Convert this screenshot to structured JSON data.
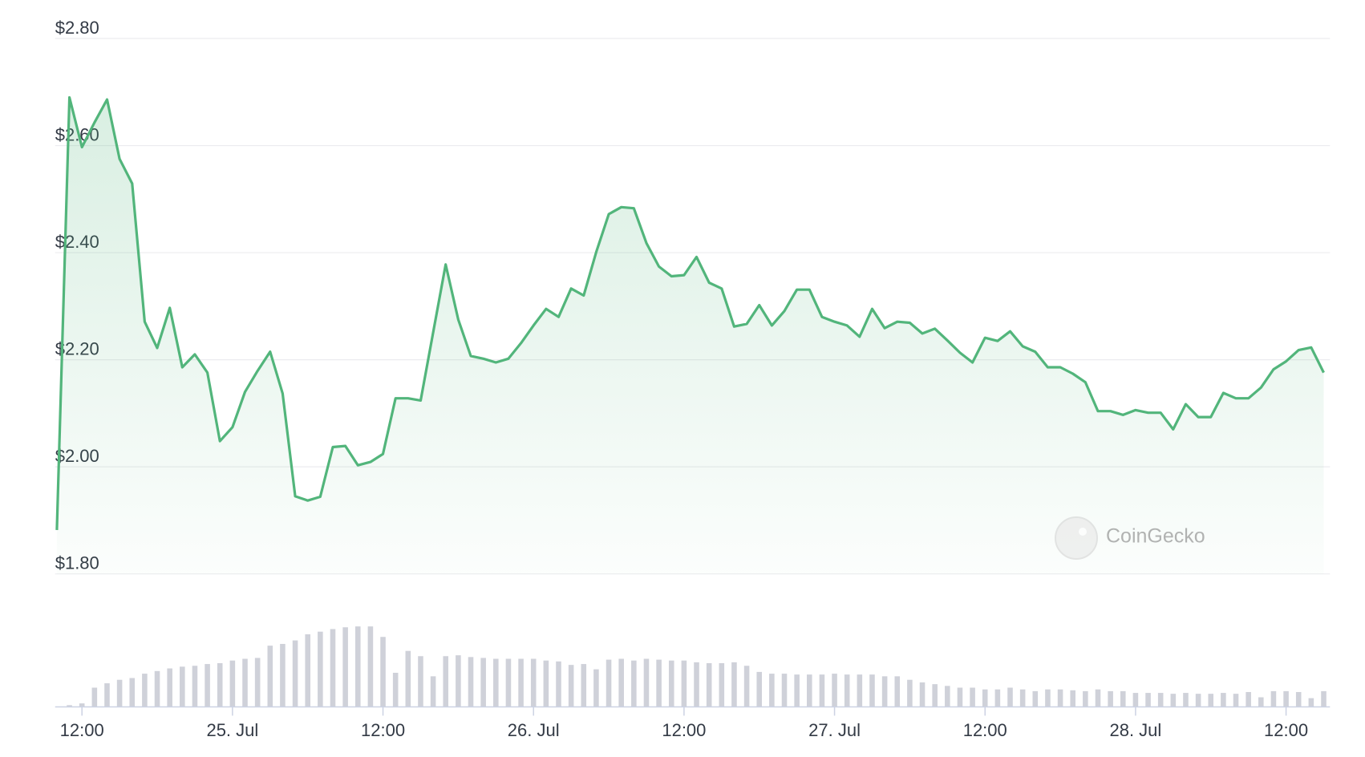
{
  "chart_data": {
    "type": "line",
    "watermark": "CoinGecko",
    "ylim": [
      1.8,
      2.8
    ],
    "yticks": [
      {
        "value": 1.8,
        "label": "$1.80"
      },
      {
        "value": 2.0,
        "label": "$2.00"
      },
      {
        "value": 2.2,
        "label": "$2.20"
      },
      {
        "value": 2.4,
        "label": "$2.40"
      },
      {
        "value": 2.6,
        "label": "$2.60"
      },
      {
        "value": 2.8,
        "label": "$2.80"
      }
    ],
    "grid": true,
    "y2lim": [
      0,
      100
    ],
    "categories": [
      null,
      null,
      "12:00",
      null,
      null,
      null,
      null,
      null,
      null,
      null,
      null,
      null,
      null,
      null,
      "25. Jul",
      null,
      null,
      null,
      null,
      null,
      null,
      null,
      null,
      null,
      null,
      null,
      "12:00",
      null,
      null,
      null,
      null,
      null,
      null,
      null,
      null,
      null,
      null,
      null,
      "26. Jul",
      null,
      null,
      null,
      null,
      null,
      null,
      null,
      null,
      null,
      null,
      null,
      "12:00",
      null,
      null,
      null,
      null,
      null,
      null,
      null,
      null,
      null,
      null,
      null,
      "27. Jul",
      null,
      null,
      null,
      null,
      null,
      null,
      null,
      null,
      null,
      null,
      null,
      "12:00",
      null,
      null,
      null,
      null,
      null,
      null,
      null,
      null,
      null,
      null,
      null,
      "28. Jul",
      null,
      null,
      null,
      null,
      null,
      null,
      null,
      null,
      null,
      null,
      null,
      "12:00",
      null,
      null,
      null
    ],
    "series": [
      {
        "color": "#52b57b",
        "values": [
          1.882,
          2.69,
          2.597,
          2.643,
          2.686,
          2.575,
          2.529,
          2.271,
          2.222,
          2.297,
          2.186,
          2.21,
          2.176,
          2.048,
          2.074,
          2.14,
          2.179,
          2.215,
          2.137,
          1.945,
          1.937,
          1.944,
          2.037,
          2.039,
          2.003,
          2.009,
          2.024,
          2.128,
          2.128,
          2.124,
          2.251,
          2.378,
          2.275,
          2.207,
          2.202,
          2.195,
          2.202,
          2.231,
          2.264,
          2.295,
          2.28,
          2.333,
          2.32,
          2.401,
          2.472,
          2.485,
          2.483,
          2.418,
          2.374,
          2.356,
          2.358,
          2.392,
          2.344,
          2.333,
          2.262,
          2.267,
          2.302,
          2.264,
          2.291,
          2.331,
          2.331,
          2.28,
          2.271,
          2.264,
          2.243,
          2.295,
          2.259,
          2.271,
          2.269,
          2.249,
          2.258,
          2.236,
          2.213,
          2.195,
          2.241,
          2.235,
          2.253,
          2.225,
          2.215,
          2.186,
          2.186,
          2.174,
          2.158,
          2.104,
          2.104,
          2.097,
          2.106,
          2.101,
          2.101,
          2.07,
          2.117,
          2.093,
          2.093,
          2.138,
          2.128,
          2.128,
          2.148,
          2.182,
          2.197,
          2.218,
          2.223,
          2.176
        ]
      },
      {
        "type": "bar",
        "axis": "y2",
        "color": "#cfd1d9",
        "values": [
          null,
          2,
          4,
          22,
          27,
          31,
          33,
          38,
          41,
          44,
          46,
          47,
          49,
          50,
          53,
          55,
          56,
          70,
          72,
          76,
          83,
          86,
          89,
          91,
          92,
          92,
          80,
          39,
          64,
          58,
          35,
          58,
          59,
          57,
          56,
          55,
          55,
          55,
          55,
          53,
          52,
          48,
          49,
          43,
          54,
          55,
          53,
          55,
          54,
          53,
          53,
          51,
          50,
          50,
          51,
          47,
          40,
          38,
          38,
          37,
          37,
          37,
          38,
          37,
          37,
          37,
          35,
          35,
          31,
          28,
          26,
          24,
          22,
          22,
          20,
          20,
          22,
          20,
          18,
          20,
          20,
          19,
          18,
          20,
          18,
          18,
          16,
          16,
          16,
          15,
          16,
          15,
          15,
          16,
          15,
          17,
          11,
          18,
          18,
          17,
          10,
          18
        ]
      }
    ]
  }
}
